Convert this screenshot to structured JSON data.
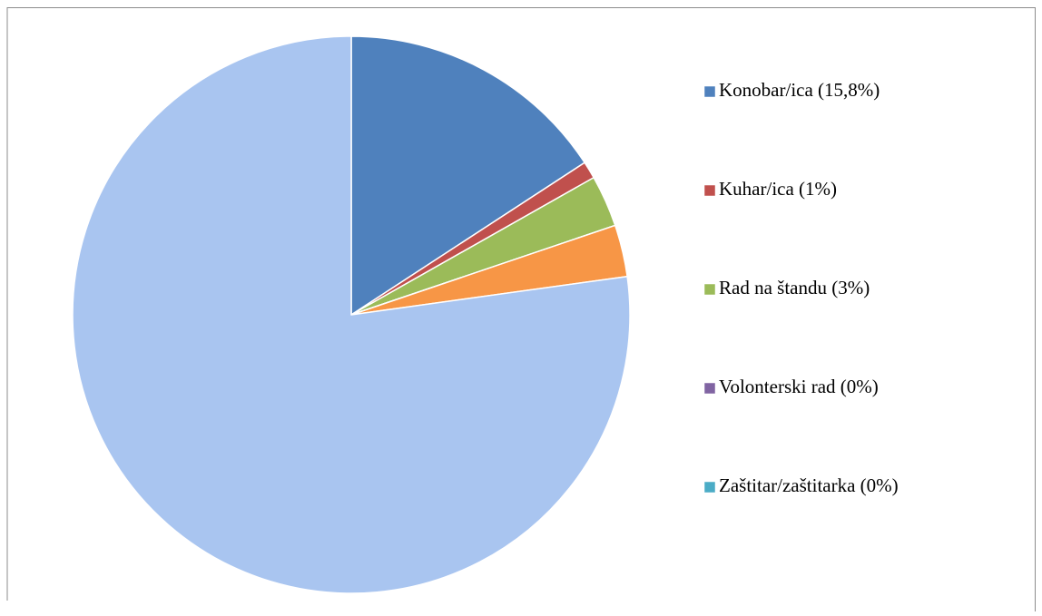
{
  "chart_data": {
    "type": "pie",
    "categories": [
      "Konobar/ica (15,8%)",
      "Kuhar/ica (1%)",
      "Rad na štandu (3%)",
      "Volonterski rad (0%)",
      "Zaštitar/zaštitarka (0%)",
      null,
      null
    ],
    "values": [
      15.8,
      1,
      3,
      0,
      0,
      3,
      77.2
    ],
    "colors": [
      "#4f81bd",
      "#c0504d",
      "#9bbb59",
      "#8064a2",
      "#4bacc6",
      "#f79646",
      "#a9c5f0"
    ],
    "legend": "right"
  }
}
